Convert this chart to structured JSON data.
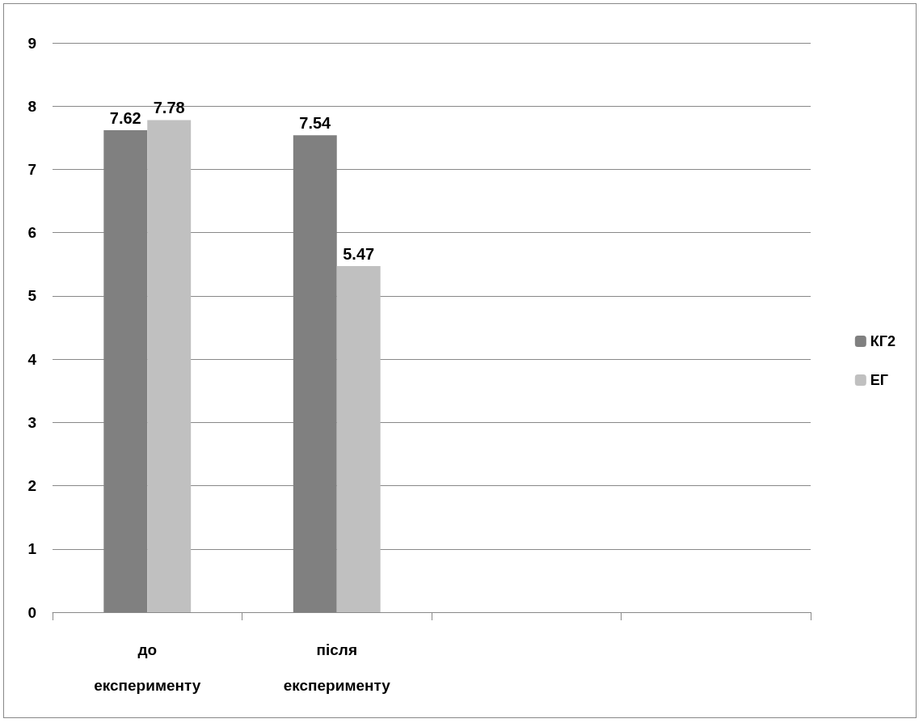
{
  "chart_data": {
    "type": "bar",
    "categories": [
      "до експерименту",
      "після експерименту",
      null,
      null
    ],
    "series": [
      {
        "name": "КГ2",
        "color": "#808080",
        "values": [
          7.62,
          7.54,
          null,
          null
        ]
      },
      {
        "name": "ЕГ",
        "color": "#c0c0c0",
        "values": [
          7.78,
          5.47,
          null,
          null
        ]
      }
    ],
    "ylim": [
      0,
      9
    ],
    "yticks": [
      0,
      1,
      2,
      3,
      4,
      5,
      6,
      7,
      8,
      9
    ],
    "grid": "y",
    "legend": "right",
    "data_labels": true
  }
}
